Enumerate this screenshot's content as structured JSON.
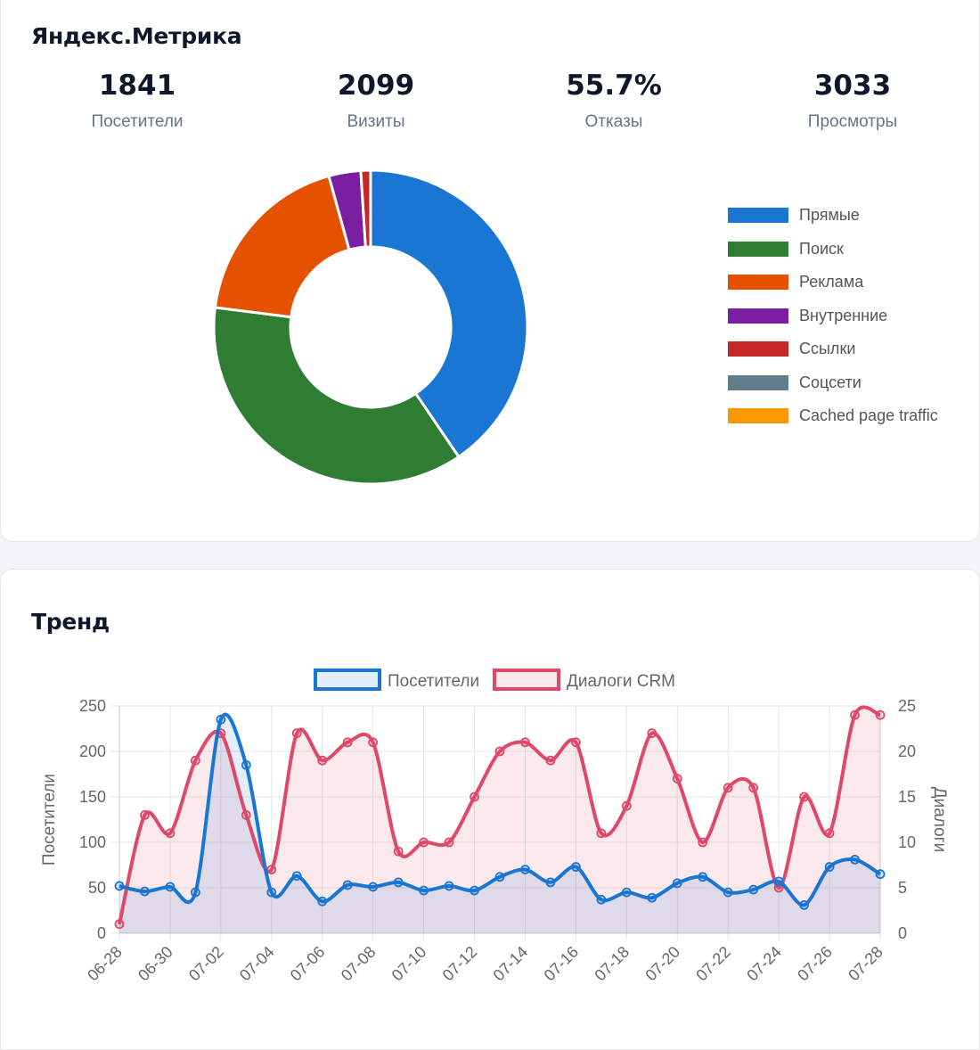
{
  "metrika": {
    "title": "Яндекс.Метрика",
    "stats": [
      {
        "value": "1841",
        "label": "Посетители"
      },
      {
        "value": "2099",
        "label": "Визиты"
      },
      {
        "value": "55.7%",
        "label": "Отказы"
      },
      {
        "value": "3033",
        "label": "Просмотры"
      }
    ]
  },
  "trend": {
    "title": "Тренд"
  },
  "chart_data": [
    {
      "type": "pie",
      "variant": "doughnut",
      "categories": [
        "Прямые",
        "Поиск",
        "Реклама",
        "Внутренние",
        "Ссылки",
        "Соцсети",
        "Cached page traffic"
      ],
      "values": [
        40.5,
        36.5,
        18.7,
        3.3,
        1.0,
        0,
        0
      ],
      "colors": [
        "#1976d2",
        "#2e7d32",
        "#e65100",
        "#7b1fa2",
        "#c62828",
        "#607d8b",
        "#ff9800"
      ],
      "legend_position": "right"
    },
    {
      "type": "line",
      "x": [
        "06-28",
        "06-29",
        "06-30",
        "07-01",
        "07-02",
        "07-03",
        "07-04",
        "07-05",
        "07-06",
        "07-07",
        "07-08",
        "07-09",
        "07-10",
        "07-11",
        "07-12",
        "07-13",
        "07-14",
        "07-15",
        "07-16",
        "07-17",
        "07-18",
        "07-19",
        "07-20",
        "07-21",
        "07-22",
        "07-23",
        "07-24",
        "07-25",
        "07-26",
        "07-27",
        "07-28"
      ],
      "x_tick_labels": [
        "06-28",
        "06-30",
        "07-02",
        "07-04",
        "07-06",
        "07-08",
        "07-10",
        "07-12",
        "07-14",
        "07-16",
        "07-18",
        "07-20",
        "07-22",
        "07-24",
        "07-26",
        "07-28"
      ],
      "series": [
        {
          "name": "Посетители",
          "axis": "left",
          "color": "#1976d2",
          "fill": true,
          "values": [
            52,
            46,
            51,
            45,
            235,
            185,
            45,
            63,
            35,
            53,
            51,
            56,
            47,
            52,
            47,
            62,
            70,
            56,
            73,
            37,
            45,
            39,
            55,
            62,
            45,
            48,
            57,
            31,
            73,
            81,
            65
          ]
        },
        {
          "name": "Диалоги CRM",
          "axis": "right",
          "color": "#e0486a",
          "fill": true,
          "values": [
            1,
            13,
            11,
            19,
            22,
            13,
            7,
            22,
            19,
            21,
            21,
            9,
            10,
            10,
            15,
            20,
            21,
            19,
            21,
            11,
            14,
            22,
            17,
            10,
            16,
            16,
            5,
            15,
            11,
            24,
            24
          ]
        }
      ],
      "ylabel": "Посетители",
      "y2label": "Диалоги",
      "ylim": [
        0,
        250
      ],
      "y2lim": [
        0,
        25
      ],
      "yticks": [
        0,
        50,
        100,
        150,
        200,
        250
      ],
      "y2ticks": [
        0,
        5,
        10,
        15,
        20,
        25
      ],
      "grid": true,
      "legend_position": "top"
    }
  ]
}
